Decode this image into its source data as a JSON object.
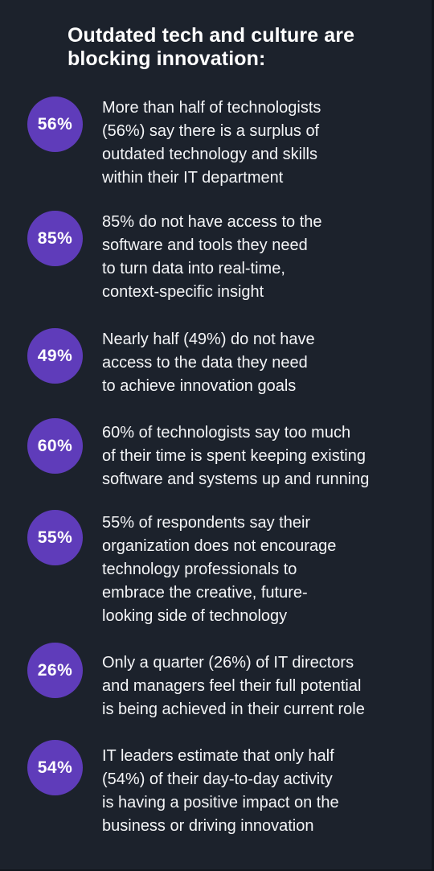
{
  "heading": "Outdated tech and culture are\nblocking innovation:",
  "colors": {
    "background": "#1c222c",
    "badge": "#5f3cba",
    "text": "#ffffff"
  },
  "stats": [
    {
      "badge": "56%",
      "text": "More than half of technologists\n(56%) say there is a surplus of\noutdated technology and skills\nwithin their IT department"
    },
    {
      "badge": "85%",
      "text": "85% do not have access to the\nsoftware and tools they need\nto turn data into real-time,\ncontext-specific insight"
    },
    {
      "badge": "49%",
      "text": "Nearly half (49%) do not have\naccess to the data they need\nto achieve innovation goals"
    },
    {
      "badge": "60%",
      "text": "60% of technologists say too much\nof their time is spent keeping existing\nsoftware and systems up and running"
    },
    {
      "badge": "55%",
      "text": "55% of respondents say their\norganization does not encourage\ntechnology professionals to\nembrace the creative, future-\nlooking side of technology"
    },
    {
      "badge": "26%",
      "text": "Only a quarter (26%) of IT directors\nand managers feel their full potential\nis being achieved in their current role"
    },
    {
      "badge": "54%",
      "text": "IT leaders estimate that only half\n(54%) of their day-to-day activity\nis having a positive impact on the\nbusiness or driving innovation"
    }
  ]
}
